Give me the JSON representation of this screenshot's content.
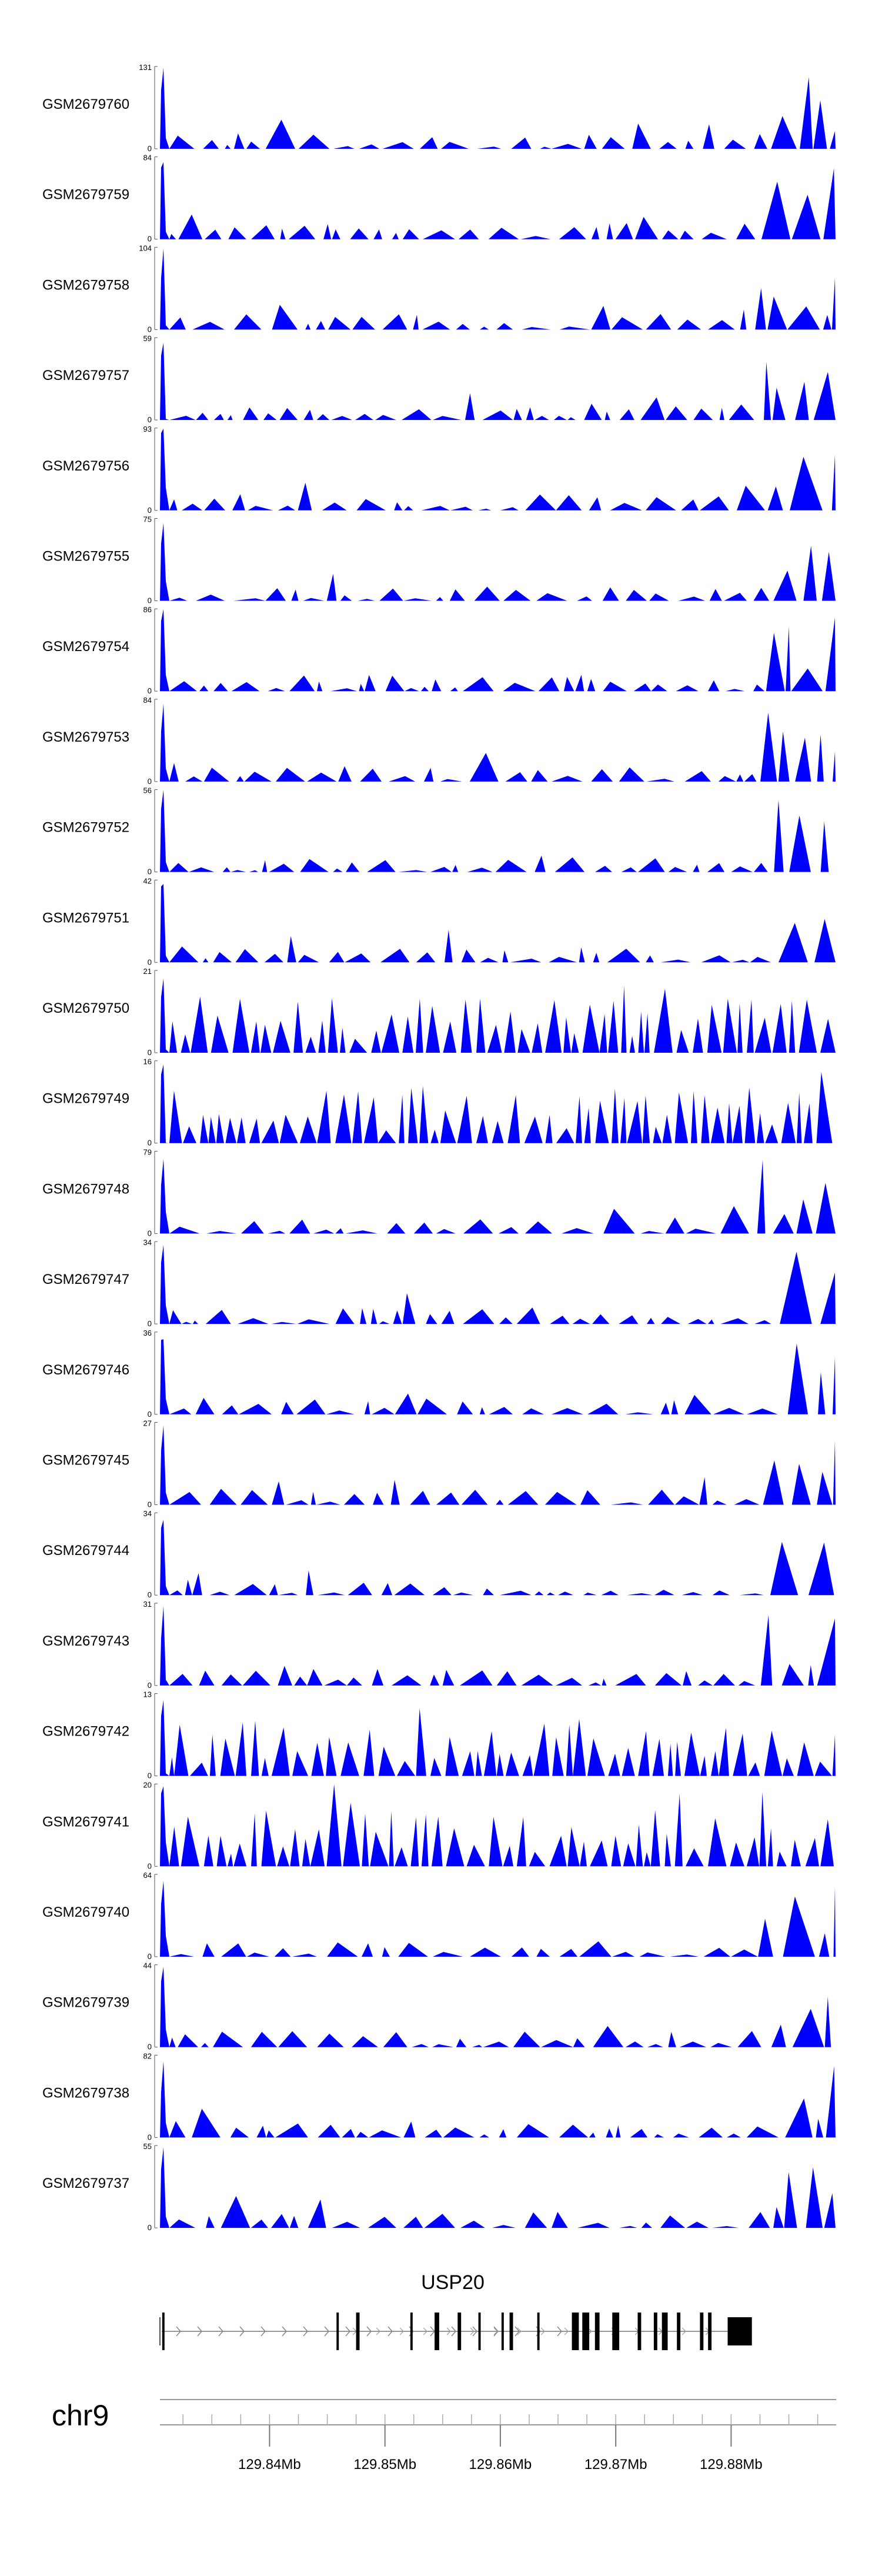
{
  "chart_data": {
    "type": "area",
    "color": "#0000ff",
    "chromosome": "chr9",
    "gene": {
      "name": "USP20",
      "exons": [
        [
          129.8307,
          129.8309
        ],
        [
          129.8458,
          129.846
        ],
        [
          129.8475,
          129.8478
        ],
        [
          129.8522,
          129.8524
        ],
        [
          129.8543,
          129.8547
        ],
        [
          129.8563,
          129.8566
        ],
        [
          129.8581,
          129.8583
        ],
        [
          129.8601,
          129.8603
        ],
        [
          129.8608,
          129.8611
        ],
        [
          129.8632,
          129.8634
        ],
        [
          129.8662,
          129.8668
        ],
        [
          129.8671,
          129.8677
        ],
        [
          129.8682,
          129.8686
        ],
        [
          129.8697,
          129.8703
        ],
        [
          129.8719,
          129.8722
        ],
        [
          129.8733,
          129.8736
        ],
        [
          129.874,
          129.8745
        ],
        [
          129.8753,
          129.8756
        ],
        [
          129.8773,
          129.8776
        ],
        [
          129.878,
          129.8783
        ],
        [
          129.8797,
          129.8818
        ]
      ]
    },
    "xaxis": {
      "range": [
        129.8305,
        129.8891
      ],
      "major_ticks": [
        129.84,
        129.85,
        129.86,
        129.87,
        129.88
      ],
      "tick_labels": [
        "129.84Mb",
        "129.85Mb",
        "129.86Mb",
        "129.87Mb",
        "129.88Mb"
      ]
    },
    "tracks": [
      {
        "name": "GSM2679760",
        "ymax": 131,
        "ylabel_min": "0",
        "ylabel_max": "131"
      },
      {
        "name": "GSM2679759",
        "ymax": 84,
        "ylabel_min": "0",
        "ylabel_max": "84"
      },
      {
        "name": "GSM2679758",
        "ymax": 104,
        "ylabel_min": "0",
        "ylabel_max": "104"
      },
      {
        "name": "GSM2679757",
        "ymax": 59,
        "ylabel_min": "0",
        "ylabel_max": "59"
      },
      {
        "name": "GSM2679756",
        "ymax": 93,
        "ylabel_min": "0",
        "ylabel_max": "93"
      },
      {
        "name": "GSM2679755",
        "ymax": 75,
        "ylabel_min": "0",
        "ylabel_max": "75"
      },
      {
        "name": "GSM2679754",
        "ymax": 86,
        "ylabel_min": "0",
        "ylabel_max": "86"
      },
      {
        "name": "GSM2679753",
        "ymax": 84,
        "ylabel_min": "0",
        "ylabel_max": "84"
      },
      {
        "name": "GSM2679752",
        "ymax": 56,
        "ylabel_min": "0",
        "ylabel_max": "56"
      },
      {
        "name": "GSM2679751",
        "ymax": 42,
        "ylabel_min": "0",
        "ylabel_max": "42"
      },
      {
        "name": "GSM2679750",
        "ymax": 21,
        "ylabel_min": "0",
        "ylabel_max": "21"
      },
      {
        "name": "GSM2679749",
        "ymax": 16,
        "ylabel_min": "0",
        "ylabel_max": "16"
      },
      {
        "name": "GSM2679748",
        "ymax": 79,
        "ylabel_min": "0",
        "ylabel_max": "79"
      },
      {
        "name": "GSM2679747",
        "ymax": 34,
        "ylabel_min": "0",
        "ylabel_max": "34"
      },
      {
        "name": "GSM2679746",
        "ymax": 36,
        "ylabel_min": "0",
        "ylabel_max": "36"
      },
      {
        "name": "GSM2679745",
        "ymax": 27,
        "ylabel_min": "0",
        "ylabel_max": "27"
      },
      {
        "name": "GSM2679744",
        "ymax": 34,
        "ylabel_min": "0",
        "ylabel_max": "34"
      },
      {
        "name": "GSM2679743",
        "ymax": 31,
        "ylabel_min": "0",
        "ylabel_max": "31"
      },
      {
        "name": "GSM2679742",
        "ymax": 13,
        "ylabel_min": "0",
        "ylabel_max": "13"
      },
      {
        "name": "GSM2679741",
        "ymax": 20,
        "ylabel_min": "0",
        "ylabel_max": "20"
      },
      {
        "name": "GSM2679740",
        "ymax": 64,
        "ylabel_min": "0",
        "ylabel_max": "64"
      },
      {
        "name": "GSM2679739",
        "ymax": 44,
        "ylabel_min": "0",
        "ylabel_max": "44"
      },
      {
        "name": "GSM2679738",
        "ymax": 82,
        "ylabel_min": "0",
        "ylabel_max": "82"
      },
      {
        "name": "GSM2679737",
        "ymax": 55,
        "ylabel_min": "0",
        "ylabel_max": "55"
      }
    ]
  }
}
